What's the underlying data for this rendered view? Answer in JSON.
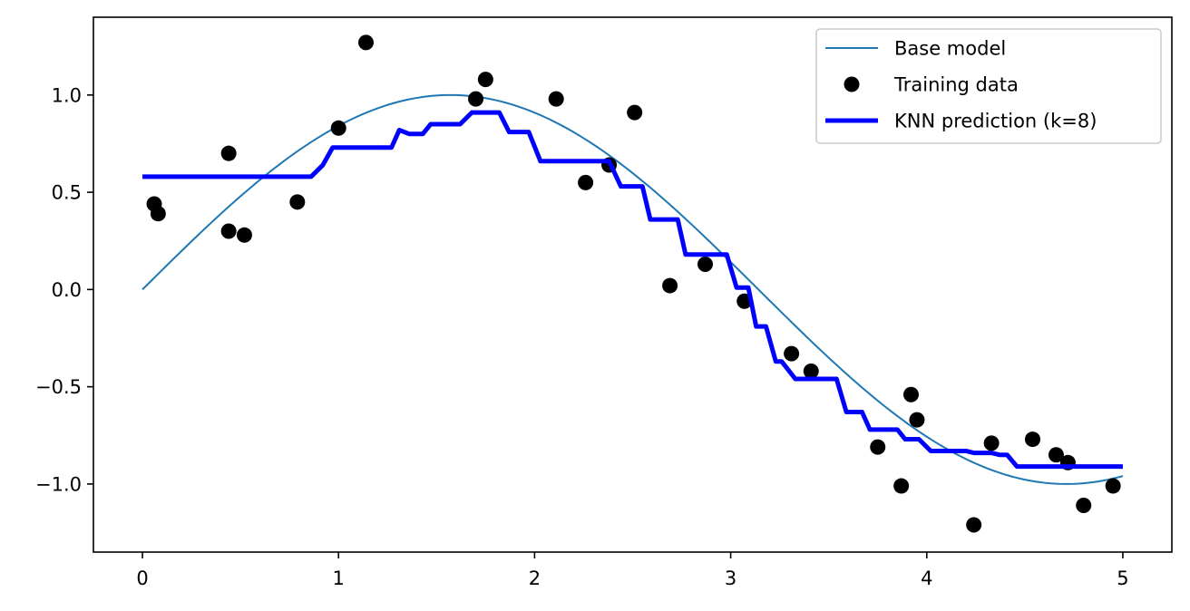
{
  "chart_data": {
    "type": "line",
    "title": "",
    "xlabel": "",
    "ylabel": "",
    "xlim": [
      -0.25,
      5.25
    ],
    "ylim": [
      -1.35,
      1.4
    ],
    "grid": false,
    "legend_position": "top-right",
    "x_ticks": [
      {
        "value": 0,
        "label": "0"
      },
      {
        "value": 1,
        "label": "1"
      },
      {
        "value": 2,
        "label": "2"
      },
      {
        "value": 3,
        "label": "3"
      },
      {
        "value": 4,
        "label": "4"
      },
      {
        "value": 5,
        "label": "5"
      }
    ],
    "y_ticks": [
      {
        "value": -1.0,
        "label": "−1.0"
      },
      {
        "value": -0.5,
        "label": "−0.5"
      },
      {
        "value": 0.0,
        "label": "0.0"
      },
      {
        "value": 0.5,
        "label": "0.5"
      },
      {
        "value": 1.0,
        "label": "1.0"
      }
    ],
    "series": [
      {
        "name": "Base model",
        "kind": "line",
        "color": "#1f77b4",
        "function": "sin(x)",
        "x_range": [
          0,
          5
        ]
      },
      {
        "name": "Training data",
        "kind": "scatter",
        "color": "#000000",
        "points": [
          [
            0.06,
            0.44
          ],
          [
            0.08,
            0.39
          ],
          [
            0.44,
            0.3
          ],
          [
            0.44,
            0.7
          ],
          [
            0.52,
            0.28
          ],
          [
            0.79,
            0.45
          ],
          [
            1.0,
            0.83
          ],
          [
            1.14,
            1.27
          ],
          [
            1.7,
            0.98
          ],
          [
            1.75,
            1.08
          ],
          [
            2.11,
            0.98
          ],
          [
            2.26,
            0.55
          ],
          [
            2.38,
            0.64
          ],
          [
            2.51,
            0.91
          ],
          [
            2.69,
            0.02
          ],
          [
            2.87,
            0.13
          ],
          [
            3.07,
            -0.06
          ],
          [
            3.31,
            -0.33
          ],
          [
            3.41,
            -0.42
          ],
          [
            3.75,
            -0.81
          ],
          [
            3.87,
            -1.01
          ],
          [
            3.92,
            -0.54
          ],
          [
            3.95,
            -0.67
          ],
          [
            4.24,
            -1.21
          ],
          [
            4.33,
            -0.79
          ],
          [
            4.54,
            -0.77
          ],
          [
            4.66,
            -0.85
          ],
          [
            4.72,
            -0.89
          ],
          [
            4.8,
            -1.11
          ],
          [
            4.95,
            -1.01
          ]
        ]
      },
      {
        "name": "KNN prediction (k=8)",
        "kind": "line",
        "color": "#0000ff",
        "points": [
          [
            0.0,
            0.58
          ],
          [
            0.86,
            0.58
          ],
          [
            0.92,
            0.64
          ],
          [
            0.97,
            0.73
          ],
          [
            1.27,
            0.73
          ],
          [
            1.31,
            0.82
          ],
          [
            1.36,
            0.8
          ],
          [
            1.43,
            0.8
          ],
          [
            1.47,
            0.85
          ],
          [
            1.62,
            0.85
          ],
          [
            1.68,
            0.91
          ],
          [
            1.82,
            0.91
          ],
          [
            1.87,
            0.81
          ],
          [
            1.97,
            0.81
          ],
          [
            2.03,
            0.66
          ],
          [
            2.38,
            0.66
          ],
          [
            2.44,
            0.53
          ],
          [
            2.55,
            0.53
          ],
          [
            2.59,
            0.36
          ],
          [
            2.73,
            0.36
          ],
          [
            2.77,
            0.18
          ],
          [
            2.98,
            0.18
          ],
          [
            3.03,
            0.01
          ],
          [
            3.09,
            0.01
          ],
          [
            3.13,
            -0.19
          ],
          [
            3.18,
            -0.19
          ],
          [
            3.23,
            -0.37
          ],
          [
            3.26,
            -0.37
          ],
          [
            3.33,
            -0.46
          ],
          [
            3.54,
            -0.46
          ],
          [
            3.59,
            -0.63
          ],
          [
            3.67,
            -0.63
          ],
          [
            3.71,
            -0.72
          ],
          [
            3.85,
            -0.72
          ],
          [
            3.89,
            -0.77
          ],
          [
            3.96,
            -0.77
          ],
          [
            4.02,
            -0.83
          ],
          [
            4.2,
            -0.83
          ],
          [
            4.24,
            -0.84
          ],
          [
            4.33,
            -0.84
          ],
          [
            4.37,
            -0.85
          ],
          [
            4.41,
            -0.85
          ],
          [
            4.46,
            -0.91
          ],
          [
            5.0,
            -0.91
          ]
        ]
      }
    ]
  }
}
